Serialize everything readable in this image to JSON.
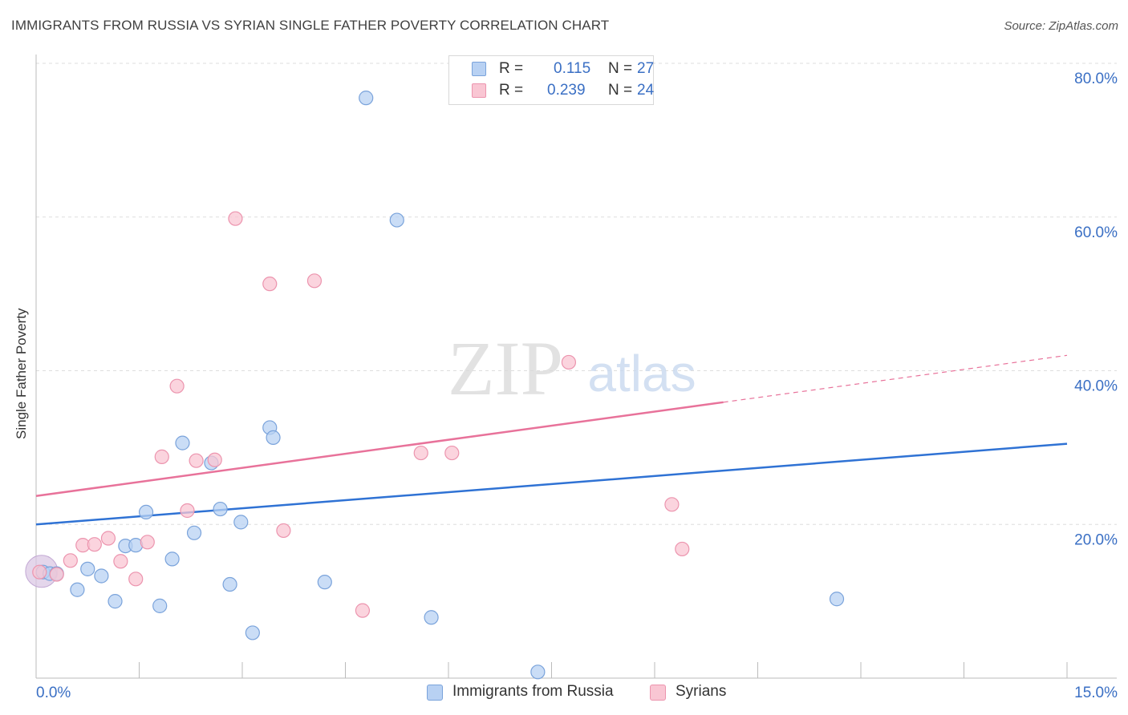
{
  "title": "IMMIGRANTS FROM RUSSIA VS SYRIAN SINGLE FATHER POVERTY CORRELATION CHART",
  "source": "Source: ZipAtlas.com",
  "watermark": {
    "zip": "ZIP",
    "atlas": "atlas"
  },
  "legend": {
    "rows": [
      {
        "r_label": "R =",
        "r_value": "0.115",
        "n_label": "N =",
        "n_value": "27"
      },
      {
        "r_label": "R =",
        "r_value": "0.239",
        "n_label": "N =",
        "n_value": "24"
      }
    ]
  },
  "bottom_legend": [
    "Immigrants from Russia",
    "Syrians"
  ],
  "colors": {
    "russia_fill": "#b8d1f3",
    "russia_stroke": "#7aa3db",
    "russia_line": "#2f72d4",
    "syria_fill": "#f9c6d3",
    "syria_stroke": "#ec94ae",
    "syria_line": "#e8729a",
    "axis_text": "#3a6fc4",
    "grid": "#dddddd"
  },
  "chart_data": {
    "type": "scatter",
    "title": "IMMIGRANTS FROM RUSSIA VS SYRIAN SINGLE FATHER POVERTY CORRELATION CHART",
    "xlabel": "",
    "ylabel": "Single Father Poverty",
    "xlim": [
      0,
      15
    ],
    "ylim": [
      0,
      80
    ],
    "x_tick_labels": [
      "0.0%",
      "15.0%"
    ],
    "y_tick_labels": [
      "20.0%",
      "40.0%",
      "60.0%",
      "80.0%"
    ],
    "y_ticks": [
      20,
      40,
      60,
      80
    ],
    "grid": true,
    "legend_position": "top-center",
    "series": [
      {
        "name": "Immigrants from Russia",
        "r": 0.115,
        "n": 27,
        "trend": {
          "x": [
            0,
            15
          ],
          "y": [
            20.0,
            30.5
          ],
          "dashed_from": null
        },
        "points": [
          [
            0.1,
            13.8
          ],
          [
            0.2,
            13.6
          ],
          [
            0.3,
            13.6
          ],
          [
            0.6,
            11.5
          ],
          [
            0.75,
            14.2
          ],
          [
            0.95,
            13.3
          ],
          [
            1.15,
            10.0
          ],
          [
            1.3,
            17.2
          ],
          [
            1.45,
            17.3
          ],
          [
            1.6,
            21.6
          ],
          [
            1.8,
            9.4
          ],
          [
            1.98,
            15.5
          ],
          [
            2.13,
            30.6
          ],
          [
            2.3,
            18.9
          ],
          [
            2.55,
            28.0
          ],
          [
            2.68,
            22.0
          ],
          [
            2.82,
            12.2
          ],
          [
            2.98,
            20.3
          ],
          [
            3.15,
            5.9
          ],
          [
            3.4,
            32.6
          ],
          [
            3.45,
            31.3
          ],
          [
            4.2,
            12.5
          ],
          [
            4.8,
            75.5
          ],
          [
            5.25,
            59.6
          ],
          [
            5.75,
            7.9
          ],
          [
            7.3,
            0.8
          ],
          [
            11.65,
            10.3
          ]
        ]
      },
      {
        "name": "Syrians",
        "r": 0.239,
        "n": 24,
        "trend": {
          "x": [
            0,
            15
          ],
          "y": [
            23.7,
            42.0
          ],
          "dashed_from": 10.0
        },
        "points": [
          [
            0.05,
            13.8
          ],
          [
            0.3,
            13.5
          ],
          [
            0.5,
            15.3
          ],
          [
            0.68,
            17.3
          ],
          [
            0.85,
            17.4
          ],
          [
            1.05,
            18.2
          ],
          [
            1.23,
            15.2
          ],
          [
            1.45,
            12.9
          ],
          [
            1.62,
            17.7
          ],
          [
            1.83,
            28.8
          ],
          [
            2.05,
            38.0
          ],
          [
            2.2,
            21.8
          ],
          [
            2.33,
            28.3
          ],
          [
            2.6,
            28.4
          ],
          [
            2.9,
            59.8
          ],
          [
            3.4,
            51.3
          ],
          [
            3.6,
            19.2
          ],
          [
            4.05,
            51.7
          ],
          [
            4.75,
            8.8
          ],
          [
            5.6,
            29.3
          ],
          [
            6.05,
            29.3
          ],
          [
            7.75,
            41.1
          ],
          [
            9.25,
            22.6
          ],
          [
            9.4,
            16.8
          ]
        ]
      }
    ]
  }
}
